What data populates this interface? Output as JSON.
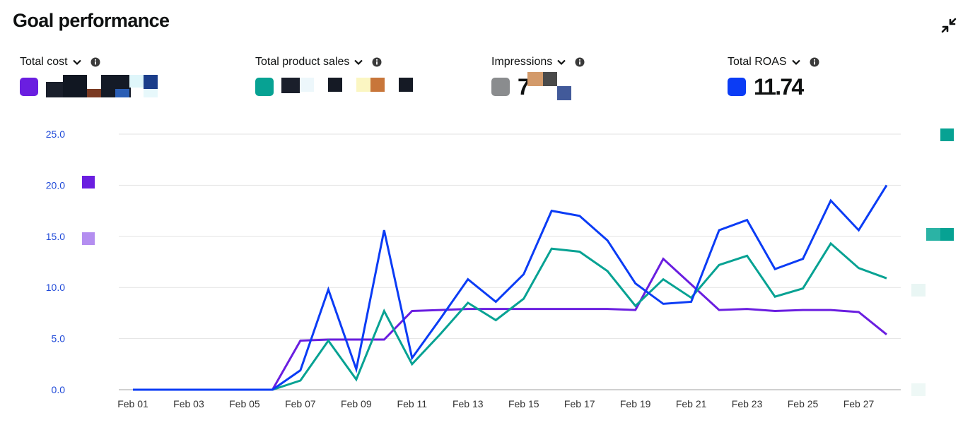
{
  "title": "Goal performance",
  "metrics": [
    {
      "label": "Total cost",
      "color": "#6a1ee0",
      "value": ""
    },
    {
      "label": "Total product sales",
      "color": "#07a293",
      "value": ""
    },
    {
      "label": "Impressions",
      "color": "#8a8c8e",
      "value": "7"
    },
    {
      "label": "Total ROAS",
      "color": "#0b3cf5",
      "value": "11.74"
    }
  ],
  "chart_data": {
    "type": "line",
    "x": [
      "Feb 01",
      "Feb 02",
      "Feb 03",
      "Feb 04",
      "Feb 05",
      "Feb 06",
      "Feb 07",
      "Feb 08",
      "Feb 09",
      "Feb 10",
      "Feb 11",
      "Feb 12",
      "Feb 13",
      "Feb 14",
      "Feb 15",
      "Feb 16",
      "Feb 17",
      "Feb 18",
      "Feb 19",
      "Feb 20",
      "Feb 21",
      "Feb 22",
      "Feb 23",
      "Feb 24",
      "Feb 25",
      "Feb 26",
      "Feb 27",
      "Feb 28"
    ],
    "xticks": [
      "Feb 01",
      "Feb 03",
      "Feb 05",
      "Feb 07",
      "Feb 09",
      "Feb 11",
      "Feb 13",
      "Feb 15",
      "Feb 17",
      "Feb 19",
      "Feb 21",
      "Feb 23",
      "Feb 25",
      "Feb 27"
    ],
    "yticks": [
      "0.0",
      "5.0",
      "10.0",
      "15.0",
      "20.0",
      "25.0"
    ],
    "ylim": [
      0,
      25
    ],
    "grid": true,
    "series": [
      {
        "color": "#6a1ee0",
        "values": [
          0,
          0,
          0,
          0,
          0,
          0,
          4.8,
          4.9,
          4.9,
          4.9,
          7.7,
          7.8,
          7.9,
          7.9,
          7.9,
          7.9,
          7.9,
          7.9,
          7.8,
          12.8,
          10.3,
          7.8,
          7.9,
          7.7,
          7.8,
          7.8,
          7.6,
          5.4
        ]
      },
      {
        "color": "#07a293",
        "values": [
          0,
          0,
          0,
          0,
          0,
          0,
          0.9,
          4.8,
          1.0,
          7.7,
          2.5,
          5.4,
          8.5,
          6.8,
          8.9,
          13.8,
          13.5,
          11.6,
          8.2,
          10.8,
          9.0,
          12.2,
          13.1,
          9.1,
          9.9,
          14.3,
          11.9,
          10.9
        ]
      },
      {
        "color": "#0b3cf5",
        "values": [
          0,
          0,
          0,
          0,
          0,
          0,
          1.9,
          9.8,
          2.0,
          15.6,
          3.1,
          6.9,
          10.8,
          8.6,
          11.3,
          17.5,
          17.0,
          14.6,
          10.4,
          8.4,
          8.6,
          15.6,
          16.6,
          11.8,
          12.8,
          18.5,
          15.6,
          20.0
        ]
      }
    ]
  }
}
